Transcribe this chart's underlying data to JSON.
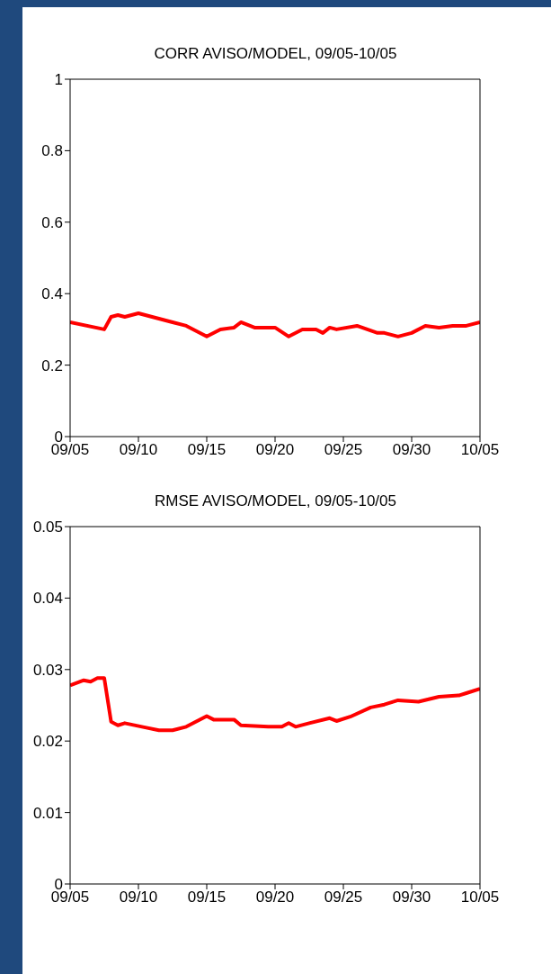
{
  "chart_data": [
    {
      "type": "line",
      "title": "CORR AVISO/MODEL, 09/05-10/05",
      "color": "#ff0000",
      "x": [
        "--09-05",
        "--09-07T12:00",
        "--09-08",
        "--09-08T12:00",
        "--09-09",
        "--09-10",
        "--09-11",
        "--09-12T12:00",
        "--09-13T12:00",
        "--09-15",
        "--09-16",
        "--09-17",
        "--09-17T12:00",
        "--09-18T12:00",
        "--09-20",
        "--09-21",
        "--09-22",
        "--09-23",
        "--09-23T12:00",
        "--09-24",
        "--09-24T12:00",
        "--09-26",
        "--09-27T12:00",
        "--09-28",
        "--09-29",
        "--09-30",
        "--10-01",
        "--10-02",
        "--10-03",
        "--10-04",
        "--10-05"
      ],
      "values": [
        0.32,
        0.3,
        0.335,
        0.34,
        0.335,
        0.345,
        0.335,
        0.32,
        0.31,
        0.28,
        0.3,
        0.305,
        0.32,
        0.305,
        0.305,
        0.28,
        0.3,
        0.3,
        0.29,
        0.305,
        0.3,
        0.31,
        0.29,
        0.29,
        0.28,
        0.29,
        0.31,
        0.305,
        0.31,
        0.31,
        0.32
      ],
      "xlim": [
        "--09-05",
        "--10-05"
      ],
      "xticks": [
        {
          "value": "--09-05",
          "label": "09/05"
        },
        {
          "value": "--09-10",
          "label": "09/10"
        },
        {
          "value": "--09-15",
          "label": "09/15"
        },
        {
          "value": "--09-20",
          "label": "09/20"
        },
        {
          "value": "--09-25",
          "label": "09/25"
        },
        {
          "value": "--09-30",
          "label": "09/30"
        },
        {
          "value": "--10-05",
          "label": "10/05"
        }
      ],
      "ylim": [
        0,
        1
      ],
      "yticks": [
        0,
        0.2,
        0.4,
        0.6,
        0.8,
        1
      ]
    },
    {
      "type": "line",
      "title": "RMSE AVISO/MODEL, 09/05-10/05",
      "color": "#ff0000",
      "x": [
        "--09-05",
        "--09-06",
        "--09-06T12:00",
        "--09-07",
        "--09-07T12:00",
        "--09-08",
        "--09-08T12:00",
        "--09-09",
        "--09-10T12:00",
        "--09-11T12:00",
        "--09-12T12:00",
        "--09-13T12:00",
        "--09-15",
        "--09-15T12:00",
        "--09-17",
        "--09-17T12:00",
        "--09-19T12:00",
        "--09-20T12:00",
        "--09-21",
        "--09-21T12:00",
        "--09-22T12:00",
        "--09-24",
        "--09-24T12:00",
        "--09-25T12:00",
        "--09-27",
        "--09-28",
        "--09-29",
        "--09-30T12:00",
        "--10-02",
        "--10-03T12:00",
        "--10-04",
        "--10-05"
      ],
      "values": [
        0.0278,
        0.0285,
        0.0283,
        0.0288,
        0.0288,
        0.0227,
        0.0222,
        0.0225,
        0.0219,
        0.0215,
        0.0215,
        0.022,
        0.0235,
        0.023,
        0.023,
        0.0222,
        0.022,
        0.022,
        0.0225,
        0.022,
        0.0225,
        0.0232,
        0.0228,
        0.0234,
        0.0247,
        0.0251,
        0.0257,
        0.0255,
        0.0262,
        0.0264,
        0.0267,
        0.0273
      ],
      "xlim": [
        "--09-05",
        "--10-05"
      ],
      "xticks": [
        {
          "value": "--09-05",
          "label": "09/05"
        },
        {
          "value": "--09-10",
          "label": "09/10"
        },
        {
          "value": "--09-15",
          "label": "09/15"
        },
        {
          "value": "--09-20",
          "label": "09/20"
        },
        {
          "value": "--09-25",
          "label": "09/25"
        },
        {
          "value": "--09-30",
          "label": "09/30"
        },
        {
          "value": "--10-05",
          "label": "10/05"
        }
      ],
      "ylim": [
        0,
        0.05
      ],
      "yticks": [
        0,
        0.01,
        0.02,
        0.03,
        0.04,
        0.05
      ]
    }
  ]
}
